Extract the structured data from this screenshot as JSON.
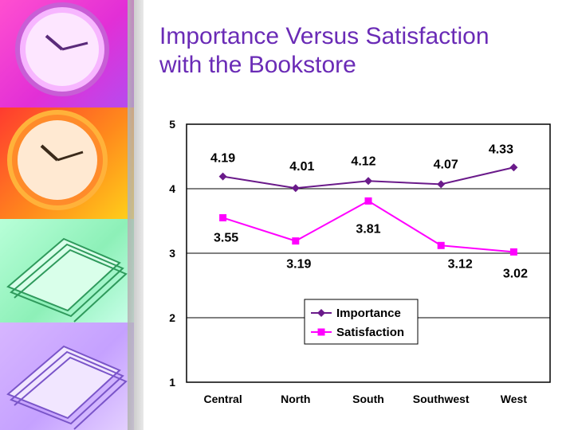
{
  "slide": {
    "title_line1": "Importance Versus Satisfaction",
    "title_line2": "with the Bookstore",
    "colors": {
      "title": "#6a2bb6",
      "importance": "#6a1a8a",
      "satisfaction": "#ff00ff"
    }
  },
  "chart_data": {
    "type": "line",
    "categories": [
      "Central",
      "North",
      "South",
      "Southwest",
      "West"
    ],
    "series": [
      {
        "name": "Importance",
        "values": [
          4.19,
          4.01,
          4.12,
          4.07,
          4.33
        ]
      },
      {
        "name": "Satisfaction",
        "values": [
          3.55,
          3.19,
          3.81,
          3.12,
          3.02
        ]
      }
    ],
    "ylim": [
      1,
      5
    ],
    "yticks": [
      1,
      2,
      3,
      4,
      5
    ],
    "grid": true,
    "legend_position": "bottom-right",
    "title": "",
    "xlabel": "",
    "ylabel": ""
  }
}
